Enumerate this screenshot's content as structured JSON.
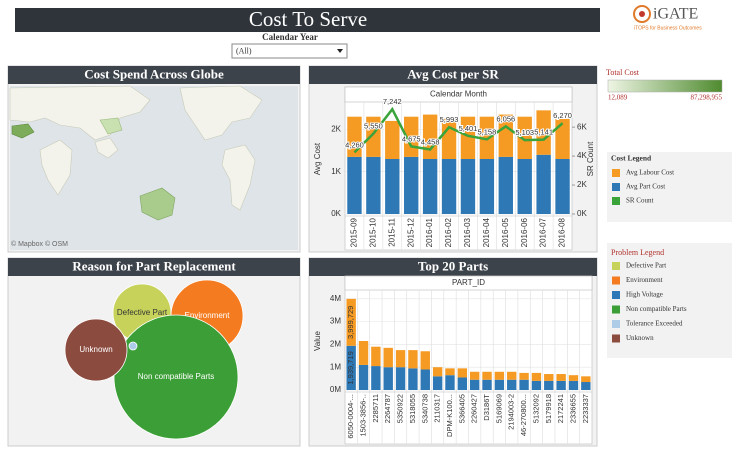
{
  "header": {
    "title": "Cost To Serve"
  },
  "logo": {
    "name": "iGATE",
    "tagline": "iTOPS for Business Outcomes"
  },
  "filter": {
    "label": "Calendar Year",
    "value": "(All)"
  },
  "map": {
    "title": "Cost Spend Across Globe",
    "attribution": "© Mapbox © OSM"
  },
  "total_cost_legend": {
    "title": "Total Cost",
    "min": {
      "value": 12089,
      "label": "12,089"
    },
    "max": {
      "value": 87298955,
      "label": "87,298,955"
    },
    "colors": [
      "#eef5e4",
      "#4f8b2f"
    ]
  },
  "cost_legend": {
    "title": "Cost Legend"
  },
  "problem_legend": {
    "title": "Problem Legend"
  },
  "chart_data": [
    {
      "type": "bar-line",
      "title": "Avg Cost per SR",
      "x_header": "Calendar Month",
      "categories": [
        "2015-09",
        "2015-10",
        "2015-11",
        "2015-12",
        "2016-01",
        "2016-02",
        "2016-03",
        "2016-04",
        "2016-05",
        "2016-06",
        "2016-07",
        "2016-08"
      ],
      "ylabel": "Avg Cost",
      "y2label": "SR Count",
      "ylim": [
        0,
        2600
      ],
      "yticks": [
        {
          "value": 0,
          "label": "0K"
        },
        {
          "value": 1000,
          "label": "1K"
        },
        {
          "value": 2000,
          "label": "2K"
        }
      ],
      "y2lim": [
        0,
        7600
      ],
      "y2ticks": [
        {
          "value": 0,
          "label": "0K"
        },
        {
          "value": 2000,
          "label": "2K"
        },
        {
          "value": 4000,
          "label": "4K"
        },
        {
          "value": 6000,
          "label": "6K"
        }
      ],
      "series": [
        {
          "name": "Avg Labour Cost",
          "color": "#f59a23",
          "values": [
            950,
            950,
            900,
            950,
            1050,
            950,
            1000,
            1000,
            1000,
            1000,
            1050,
            950
          ]
        },
        {
          "name": "Avg Part Cost",
          "color": "#2f78b6",
          "values": [
            1350,
            1350,
            1300,
            1350,
            1300,
            1300,
            1300,
            1300,
            1350,
            1300,
            1400,
            1300
          ]
        },
        {
          "name": "SR Count",
          "color": "#3aa33a",
          "type": "line",
          "axis": "y2",
          "values": [
            4260,
            5550,
            7242,
            4675,
            4458,
            5993,
            5401,
            5158,
            6056,
            5103,
            5141,
            6270
          ],
          "value_labels": [
            "4,260",
            "5,550",
            "7,242",
            "4,675",
            "4,458",
            "5,993",
            "5,401",
            "5,158",
            "6,056",
            "5,103",
            "5,141",
            "6,270"
          ]
        }
      ]
    },
    {
      "type": "bubble",
      "title": "Reason for Part Replacement",
      "categories": [
        "Defective Part",
        "Environment",
        "High Voltage",
        "Non compatible Parts",
        "Tolerance Exceeded",
        "Unknown"
      ],
      "values": [
        841,
        1296,
        25,
        3844,
        16,
        961
      ],
      "colors": [
        "#c6d25a",
        "#f47b20",
        "#2e78b8",
        "#3b9e36",
        "#aecbe8",
        "#8c4b3f"
      ]
    },
    {
      "type": "bar",
      "title": "Top 20 Parts",
      "x_header": "PART_ID",
      "ylabel": "Value",
      "categories": [
        "6050-0004-...",
        "1503-3856-..",
        "2285711",
        "2264787",
        "5350922",
        "5318055",
        "5340738",
        "2110317",
        "DPM-K100...",
        "5366405",
        "2260427",
        "D3186T",
        "5169069",
        "2194003-2",
        "46-270800...",
        "5132092",
        "5179918",
        "2172241",
        "2336655",
        "2233337"
      ],
      "ylim": [
        0,
        4300000
      ],
      "yticks": [
        {
          "value": 0,
          "label": "0M"
        },
        {
          "value": 1000000,
          "label": "1M"
        },
        {
          "value": 2000000,
          "label": "2M"
        },
        {
          "value": 3000000,
          "label": "3M"
        },
        {
          "value": 4000000,
          "label": "4M"
        }
      ],
      "series": [
        {
          "color": "#f59a23",
          "values": [
            2060010,
            1050000,
            850000,
            850000,
            750000,
            800000,
            800000,
            400000,
            300000,
            400000,
            350000,
            350000,
            350000,
            350000,
            300000,
            350000,
            300000,
            300000,
            250000,
            250000
          ]
        },
        {
          "color": "#2f78b6",
          "values": [
            1939719,
            1100000,
            1050000,
            1000000,
            1000000,
            950000,
            900000,
            600000,
            650000,
            550000,
            450000,
            450000,
            450000,
            450000,
            450000,
            400000,
            400000,
            400000,
            400000,
            350000
          ],
          "value_labels": [
            "1,939,719",
            null,
            null,
            null,
            null,
            null,
            null,
            null,
            null,
            null,
            null,
            null,
            null,
            null,
            null,
            null,
            null,
            null,
            null,
            null
          ]
        }
      ],
      "annotations": [
        {
          "text": "3,999,729"
        }
      ]
    }
  ]
}
